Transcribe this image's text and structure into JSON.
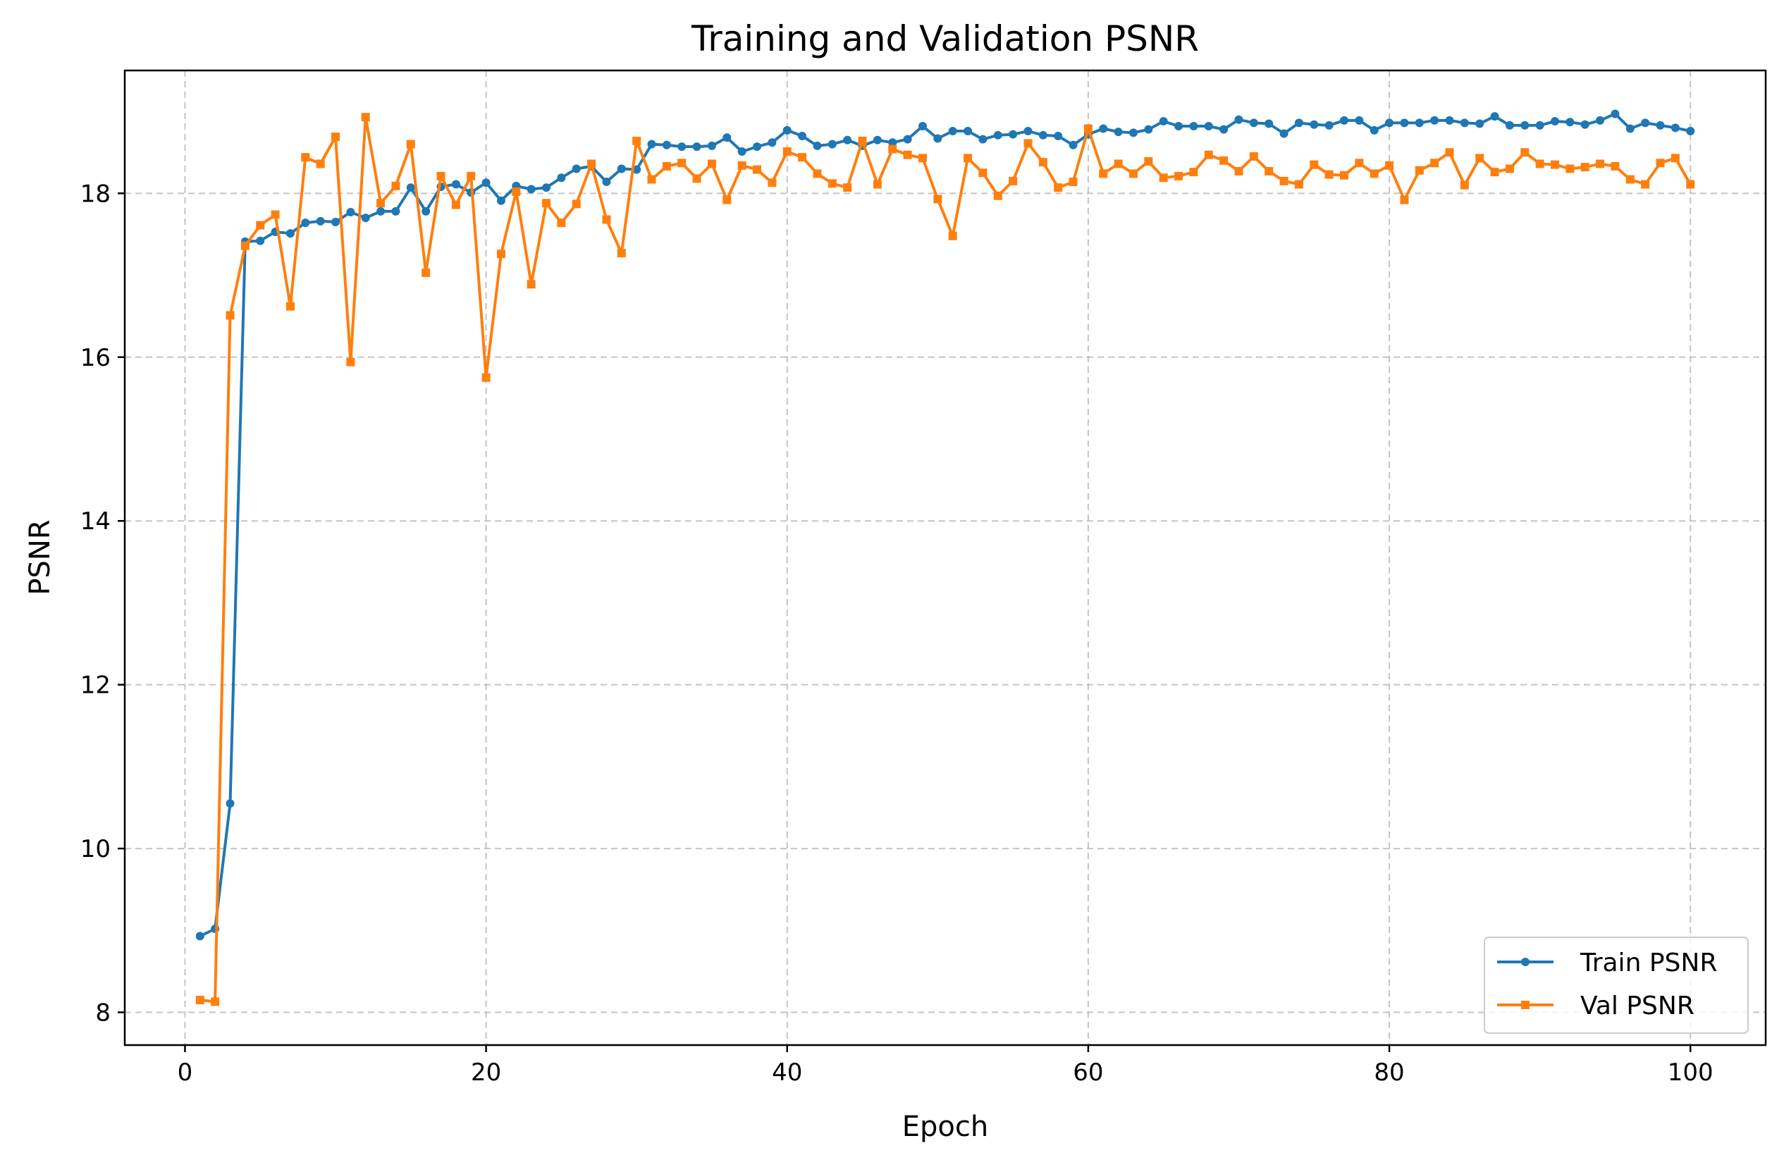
{
  "chart_data": {
    "type": "line",
    "title": "Training and Validation PSNR",
    "xlabel": "Epoch",
    "ylabel": "PSNR",
    "xlim": [
      -4,
      105
    ],
    "ylim": [
      7.6,
      19.5
    ],
    "xticks": [
      0,
      20,
      40,
      60,
      80,
      100
    ],
    "yticks": [
      8,
      10,
      12,
      14,
      16,
      18
    ],
    "grid": true,
    "legend_position": "lower-right",
    "series": [
      {
        "name": "Train PSNR",
        "color": "#1f77b4",
        "marker": "circle",
        "x": [
          1,
          2,
          3,
          4,
          5,
          6,
          7,
          8,
          9,
          10,
          11,
          12,
          13,
          14,
          15,
          16,
          17,
          18,
          19,
          20,
          21,
          22,
          23,
          24,
          25,
          26,
          27,
          28,
          29,
          30,
          31,
          32,
          33,
          34,
          35,
          36,
          37,
          38,
          39,
          40,
          41,
          42,
          43,
          44,
          45,
          46,
          47,
          48,
          49,
          50,
          51,
          52,
          53,
          54,
          55,
          56,
          57,
          58,
          59,
          60,
          61,
          62,
          63,
          64,
          65,
          66,
          67,
          68,
          69,
          70,
          71,
          72,
          73,
          74,
          75,
          76,
          77,
          78,
          79,
          80,
          81,
          82,
          83,
          84,
          85,
          86,
          87,
          88,
          89,
          90,
          91,
          92,
          93,
          94,
          95,
          96,
          97,
          98,
          99,
          100
        ],
        "values": [
          8.93,
          9.02,
          10.55,
          17.41,
          17.42,
          17.53,
          17.51,
          17.64,
          17.66,
          17.65,
          17.77,
          17.7,
          17.78,
          17.78,
          18.07,
          17.78,
          18.08,
          18.11,
          18.01,
          18.13,
          17.91,
          18.09,
          18.05,
          18.07,
          18.19,
          18.3,
          18.33,
          18.14,
          18.3,
          18.29,
          18.6,
          18.59,
          18.57,
          18.57,
          18.58,
          18.68,
          18.51,
          18.57,
          18.62,
          18.77,
          18.7,
          18.58,
          18.6,
          18.65,
          18.58,
          18.65,
          18.62,
          18.66,
          18.82,
          18.67,
          18.76,
          18.76,
          18.66,
          18.71,
          18.72,
          18.76,
          18.71,
          18.7,
          18.59,
          18.72,
          18.79,
          18.75,
          18.74,
          18.78,
          18.88,
          18.82,
          18.82,
          18.82,
          18.78,
          18.9,
          18.86,
          18.85,
          18.73,
          18.86,
          18.84,
          18.83,
          18.89,
          18.89,
          18.77,
          18.86,
          18.86,
          18.86,
          18.89,
          18.89,
          18.86,
          18.85,
          18.94,
          18.83,
          18.83,
          18.83,
          18.88,
          18.87,
          18.84,
          18.89,
          18.97,
          18.79,
          18.86,
          18.83,
          18.8,
          18.76
        ]
      },
      {
        "name": "Val PSNR",
        "color": "#ff7f0e",
        "marker": "square",
        "x": [
          1,
          2,
          3,
          4,
          5,
          6,
          7,
          8,
          9,
          10,
          11,
          12,
          13,
          14,
          15,
          16,
          17,
          18,
          19,
          20,
          21,
          22,
          23,
          24,
          25,
          26,
          27,
          28,
          29,
          30,
          31,
          32,
          33,
          34,
          35,
          36,
          37,
          38,
          39,
          40,
          41,
          42,
          43,
          44,
          45,
          46,
          47,
          48,
          49,
          50,
          51,
          52,
          53,
          54,
          55,
          56,
          57,
          58,
          59,
          60,
          61,
          62,
          63,
          64,
          65,
          66,
          67,
          68,
          69,
          70,
          71,
          72,
          73,
          74,
          75,
          76,
          77,
          78,
          79,
          80,
          81,
          82,
          83,
          84,
          85,
          86,
          87,
          88,
          89,
          90,
          91,
          92,
          93,
          94,
          95,
          96,
          97,
          98,
          99,
          100
        ],
        "values": [
          8.15,
          8.13,
          16.51,
          17.36,
          17.61,
          17.74,
          16.62,
          18.44,
          18.36,
          18.69,
          15.94,
          18.93,
          17.88,
          18.09,
          18.6,
          17.03,
          18.21,
          17.86,
          18.21,
          15.75,
          17.26,
          18.02,
          16.89,
          17.88,
          17.64,
          17.87,
          18.36,
          17.68,
          17.27,
          18.64,
          18.17,
          18.33,
          18.37,
          18.18,
          18.36,
          17.92,
          18.34,
          18.29,
          18.13,
          18.51,
          18.44,
          18.24,
          18.12,
          18.07,
          18.64,
          18.11,
          18.54,
          18.47,
          18.43,
          17.93,
          17.48,
          18.43,
          18.25,
          17.97,
          18.15,
          18.61,
          18.38,
          18.07,
          18.14,
          18.79,
          18.24,
          18.36,
          18.24,
          18.39,
          18.19,
          18.21,
          18.26,
          18.47,
          18.4,
          18.27,
          18.45,
          18.27,
          18.15,
          18.11,
          18.35,
          18.23,
          18.22,
          18.37,
          18.24,
          18.34,
          17.92,
          18.28,
          18.37,
          18.5,
          18.1,
          18.43,
          18.26,
          18.3,
          18.5,
          18.36,
          18.35,
          18.3,
          18.32,
          18.36,
          18.33,
          18.17,
          18.11,
          18.37,
          18.43,
          18.11
        ]
      }
    ]
  }
}
